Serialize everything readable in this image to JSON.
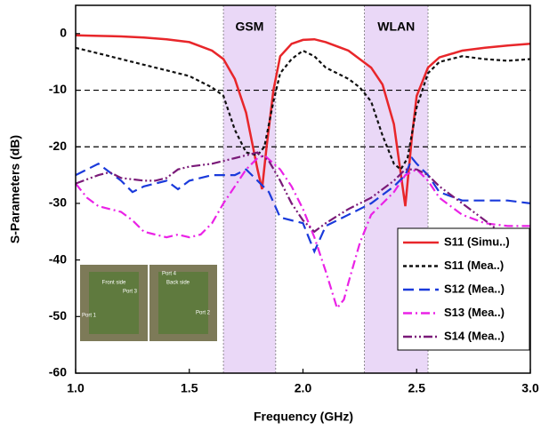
{
  "chart_data": {
    "type": "line",
    "x_label": "Frequency (GHz)",
    "y_label": "S-Parameters (dB)",
    "xlim": [
      1,
      3
    ],
    "ylim": [
      -60,
      5
    ],
    "xticks": [
      {
        "value": 1,
        "label": "1.0"
      },
      {
        "value": 1.5,
        "label": "1.5"
      },
      {
        "value": 2,
        "label": "2.0"
      },
      {
        "value": 2.5,
        "label": "2.5"
      },
      {
        "value": 3,
        "label": "3.0"
      }
    ],
    "yticks": [
      0,
      -10,
      -20,
      -30,
      -40,
      -50,
      -60
    ],
    "bands": [
      {
        "label": "GSM",
        "range": [
          1.65,
          1.88
        ],
        "color": "#ead8f7"
      },
      {
        "label": "WLAN",
        "range": [
          2.27,
          2.55
        ],
        "color": "#ead8f7"
      }
    ],
    "reference_lines": [
      -10,
      -20
    ],
    "legend_position": "lower right",
    "inset_labels": [
      "Front side",
      "Port 1",
      "Port 3",
      "Back side",
      "Port 4",
      "Port 2"
    ],
    "series": [
      {
        "name": "S11 (Simu..)",
        "color": "#e8262a",
        "dash": "",
        "x": [
          1.0,
          1.1,
          1.2,
          1.3,
          1.4,
          1.5,
          1.6,
          1.65,
          1.7,
          1.75,
          1.8,
          1.82,
          1.84,
          1.87,
          1.9,
          1.95,
          2.0,
          2.05,
          2.1,
          2.2,
          2.3,
          2.35,
          2.4,
          2.45,
          2.48,
          2.5,
          2.55,
          2.6,
          2.7,
          2.8,
          2.9,
          3.0
        ],
        "values": [
          -0.3,
          -0.4,
          -0.5,
          -0.7,
          -1,
          -1.5,
          -3,
          -4.5,
          -8,
          -14,
          -24,
          -27.5,
          -20,
          -10,
          -4,
          -1.8,
          -1.1,
          -1,
          -1.5,
          -3,
          -6,
          -9,
          -16,
          -30.5,
          -18,
          -11,
          -6,
          -4.2,
          -3,
          -2.5,
          -2.1,
          -1.8
        ]
      },
      {
        "name": "S11 (Mea..)",
        "color": "#111111",
        "dash": "4,3",
        "x": [
          1.0,
          1.1,
          1.2,
          1.3,
          1.4,
          1.5,
          1.6,
          1.65,
          1.7,
          1.75,
          1.8,
          1.83,
          1.87,
          1.9,
          1.95,
          2.0,
          2.05,
          2.1,
          2.2,
          2.25,
          2.3,
          2.35,
          2.4,
          2.43,
          2.46,
          2.5,
          2.55,
          2.6,
          2.7,
          2.8,
          2.9,
          3.0
        ],
        "values": [
          -2.5,
          -3.5,
          -4.5,
          -5.5,
          -6.5,
          -7.5,
          -9.5,
          -11,
          -17,
          -21,
          -21.5,
          -20,
          -12,
          -7,
          -4.5,
          -3,
          -4,
          -6,
          -8,
          -9.5,
          -12,
          -18,
          -23,
          -24,
          -22,
          -13,
          -7,
          -5,
          -4,
          -4.5,
          -4.8,
          -4.5
        ]
      },
      {
        "name": "S12 (Mea..)",
        "color": "#1a3adb",
        "dash": "12,6",
        "x": [
          1.0,
          1.05,
          1.1,
          1.15,
          1.2,
          1.25,
          1.3,
          1.4,
          1.45,
          1.5,
          1.6,
          1.7,
          1.75,
          1.8,
          1.85,
          1.9,
          1.95,
          2.0,
          2.05,
          2.1,
          2.2,
          2.3,
          2.4,
          2.45,
          2.48,
          2.5,
          2.55,
          2.6,
          2.7,
          2.8,
          2.9,
          3.0
        ],
        "values": [
          -25,
          -24,
          -23,
          -24.5,
          -26,
          -28,
          -27,
          -26,
          -27.5,
          -26,
          -25,
          -25,
          -24,
          -26,
          -28,
          -32.5,
          -33,
          -33.5,
          -38.5,
          -34,
          -32,
          -30,
          -27,
          -25,
          -22,
          -23,
          -25,
          -28,
          -29.5,
          -29.5,
          -29.5,
          -30
        ]
      },
      {
        "name": "S13 (Mea..)",
        "color": "#ea22e6",
        "dash": "10,4,2,4",
        "x": [
          1.0,
          1.05,
          1.1,
          1.2,
          1.25,
          1.3,
          1.35,
          1.4,
          1.45,
          1.5,
          1.55,
          1.6,
          1.65,
          1.7,
          1.75,
          1.8,
          1.83,
          1.9,
          1.95,
          2.0,
          2.05,
          2.1,
          2.15,
          2.18,
          2.2,
          2.25,
          2.3,
          2.4,
          2.45,
          2.5,
          2.55,
          2.6,
          2.7,
          2.8,
          2.9,
          3.0
        ],
        "values": [
          -26.5,
          -29,
          -30.5,
          -31.5,
          -33,
          -35,
          -35.5,
          -36,
          -35.5,
          -36,
          -35.5,
          -33.5,
          -30,
          -27,
          -24,
          -22,
          -21.5,
          -24,
          -27,
          -31,
          -36,
          -42,
          -48.5,
          -47,
          -44,
          -37,
          -32,
          -28,
          -25,
          -24,
          -26,
          -29,
          -32,
          -33.5,
          -34,
          -34
        ]
      },
      {
        "name": "S14 (Mea..)",
        "color": "#7a1a78",
        "dash": "10,3,2,3,2,3",
        "x": [
          1.0,
          1.1,
          1.15,
          1.2,
          1.3,
          1.35,
          1.4,
          1.45,
          1.5,
          1.6,
          1.7,
          1.8,
          1.85,
          1.9,
          1.95,
          2.0,
          2.05,
          2.1,
          2.2,
          2.3,
          2.4,
          2.45,
          2.5,
          2.55,
          2.6,
          2.7,
          2.8,
          2.9,
          3.0
        ],
        "values": [
          -26.5,
          -25,
          -24.5,
          -25.5,
          -26,
          -26,
          -25.5,
          -24,
          -23.5,
          -23,
          -22,
          -21,
          -22.5,
          -26,
          -30,
          -33,
          -35,
          -33.5,
          -31,
          -29,
          -26,
          -24,
          -24,
          -25,
          -27,
          -30,
          -33,
          -36,
          -40
        ]
      }
    ]
  }
}
